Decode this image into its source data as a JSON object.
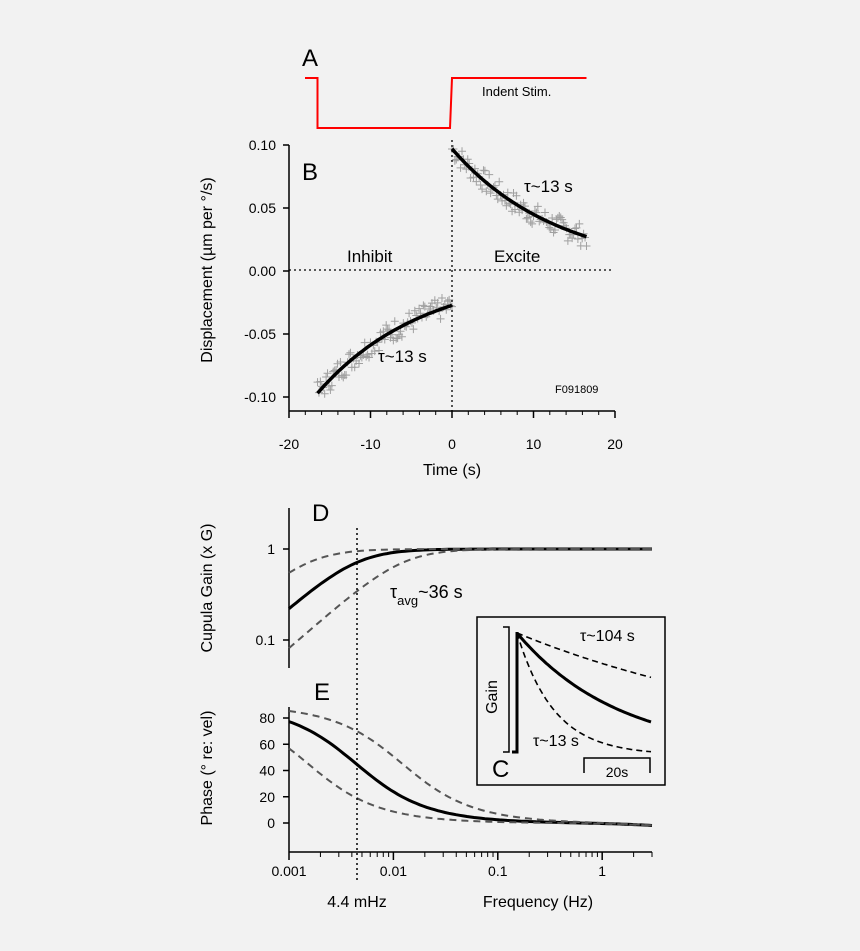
{
  "colors": {
    "background": "#f2f2f2",
    "stim": "#ff0000",
    "fit": "#000000",
    "data_marks": "#a0a0a0",
    "dashed": "#555555"
  },
  "chart_data": [
    {
      "id": "A",
      "type": "line",
      "panel_label": "A",
      "legend": "Indent Stim.",
      "series": [
        {
          "name": "Indent Stim.",
          "x": [
            -20,
            -16.5,
            -16.5,
            0,
            0,
            16.5
          ],
          "y": [
            1,
            1,
            0,
            0,
            1,
            1
          ]
        }
      ]
    },
    {
      "id": "B",
      "type": "scatter",
      "panel_label": "B",
      "xlabel": "Time (s)",
      "ylabel": "Displacement (µm per °/s)",
      "xlim": [
        -20,
        20
      ],
      "ylim": [
        -0.105,
        0.105
      ],
      "xticks": [
        -20,
        -10,
        0,
        10,
        20
      ],
      "xtick_labels": [
        "-20",
        "-10",
        "0",
        "10",
        "20"
      ],
      "yticks": [
        -0.1,
        -0.05,
        0,
        0.05,
        0.1
      ],
      "ytick_labels": [
        "-0.10",
        "-0.05",
        "0.00",
        "0.05",
        "0.10"
      ],
      "annotations": {
        "tau_excite": "τ~13 s",
        "tau_inhibit": "τ~13 s",
        "inhibit": "Inhibit",
        "excite": "Excite",
        "id_code": "F091809"
      },
      "fits": [
        {
          "phase": "excite",
          "tau": 13,
          "amplitude": 0.097,
          "x_range": [
            0,
            16.5
          ]
        },
        {
          "phase": "inhibit",
          "tau": 13,
          "amplitude": -0.097,
          "x_range": [
            -16.5,
            0
          ]
        }
      ],
      "grid": false
    },
    {
      "id": "D",
      "type": "line",
      "panel_label": "D",
      "xscale": "log",
      "yscale": "log",
      "ylabel": "Cupula Gain (x G)",
      "xlim": [
        0.001,
        3
      ],
      "ylim": [
        0.06,
        3
      ],
      "yticks": [
        0.1,
        1
      ],
      "ytick_labels": [
        "0.1",
        "1"
      ],
      "annotation_tau": "τ",
      "annotation_sub": "avg",
      "annotation_rest": "~36 s",
      "series": [
        {
          "name": "τ avg",
          "style": "solid",
          "tau": 36
        },
        {
          "style": "dashed",
          "tau": 104
        },
        {
          "style": "dashed",
          "tau": 13
        }
      ],
      "x_samples": [
        0.001,
        0.002,
        0.004,
        0.01,
        0.02,
        0.05,
        0.1,
        1,
        3
      ],
      "grid": false
    },
    {
      "id": "E",
      "type": "line",
      "panel_label": "E",
      "xscale": "log",
      "xlabel": "Frequency (Hz)",
      "ylabel": "Phase (° re: vel)",
      "xlim": [
        0.001,
        3
      ],
      "ylim": [
        -5,
        90
      ],
      "yticks": [
        0,
        20,
        40,
        60,
        80
      ],
      "ytick_labels": [
        "0",
        "20",
        "40",
        "60",
        "80"
      ],
      "xticks": [
        0.001,
        0.01,
        0.1,
        1
      ],
      "xtick_labels": [
        "0.001",
        "0.01",
        "0.1",
        "1"
      ],
      "marker_label": "4.4 mHz",
      "marker_x": 0.0044,
      "series": [
        {
          "name": "τ avg",
          "style": "solid",
          "tau": 36
        },
        {
          "style": "dashed",
          "tau": 104
        },
        {
          "style": "dashed",
          "tau": 13
        }
      ],
      "grid": false
    },
    {
      "id": "C",
      "type": "line",
      "panel_label": "C",
      "ylabel": "Gain",
      "scalebar": "20s",
      "labels": {
        "slow": "τ~104 s",
        "fast": "τ~13 s"
      },
      "series": [
        {
          "name": "τ~104 s",
          "style": "dashed",
          "tau": 104
        },
        {
          "style": "solid",
          "tau": 36
        },
        {
          "name": "τ~13 s",
          "style": "dashed",
          "tau": 13
        }
      ]
    }
  ]
}
